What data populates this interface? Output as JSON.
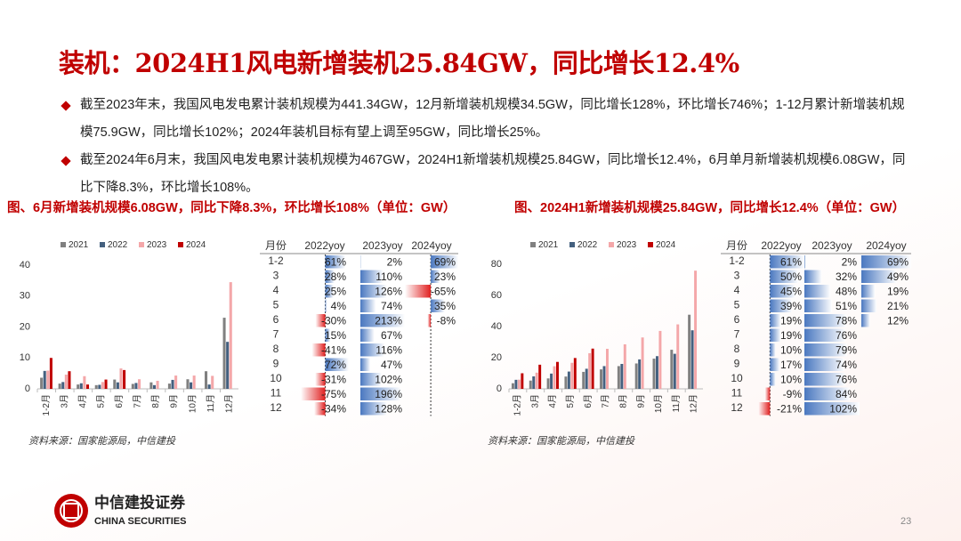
{
  "header": {
    "title": "装机：2024H1风电新增装机25.84GW，同比增长12.4%"
  },
  "bullets": [
    "截至2023年末，我国风电发电累计装机规模为441.34GW，12月新增装机规模34.5GW，同比增长128%，环比增长746%；1-12月累计新增装机规模75.9GW，同比增长102%；2024年装机目标有望上调至95GW，同比增长25%。",
    "截至2024年6月末，我国风电发电累计装机规模为467GW，2024H1新增装机规模25.84GW，同比增长12.4%，6月单月新增装机规模6.08GW，同比下降8.3%，环比增长108%。"
  ],
  "figures": [
    {
      "caption": "图、6月新增装机规模6.08GW，同比下降8.3%，环比增长108%（单位：GW）",
      "source": "资料来源：国家能源局，中信建投"
    },
    {
      "caption": "图、2024H1新增装机规模25.84GW，同比增长12.4%（单位：GW）",
      "source": "资料来源：国家能源局，中信建投"
    }
  ],
  "chart_data": [
    {
      "type": "bar",
      "categories": [
        "1-2月",
        "3月",
        "4月",
        "5月",
        "6月",
        "7月",
        "8月",
        "9月",
        "10月",
        "11月",
        "12月"
      ],
      "series": [
        {
          "name": "2021",
          "color": "#808080",
          "values": [
            3.6,
            1.7,
            1.4,
            1.2,
            3.0,
            1.6,
            2.1,
            1.7,
            3.1,
            5.7,
            23.0
          ]
        },
        {
          "name": "2022",
          "color": "#44607f",
          "values": [
            5.8,
            2.2,
            1.8,
            1.3,
            2.1,
            1.9,
            1.2,
            2.9,
            2.1,
            1.4,
            15.2
          ]
        },
        {
          "name": "2023",
          "color": "#f4a7a9",
          "values": [
            5.9,
            4.6,
            4.1,
            2.2,
            6.6,
            3.1,
            2.6,
            4.3,
            4.3,
            4.2,
            34.5
          ]
        },
        {
          "name": "2024",
          "color": "#c00000",
          "values": [
            10.0,
            5.7,
            1.4,
            3.0,
            6.08,
            null,
            null,
            null,
            null,
            null,
            null
          ]
        }
      ],
      "ylim": [
        0,
        40
      ],
      "yticks": [
        0,
        10,
        20,
        30,
        40
      ],
      "legend": "top"
    },
    {
      "type": "table",
      "row_header": "月份",
      "categories": [
        "1-2",
        "3",
        "4",
        "5",
        "6",
        "7",
        "8",
        "9",
        "10",
        "11",
        "12"
      ],
      "series": [
        {
          "name": "2022yoy",
          "values": [
            61,
            28,
            25,
            4,
            -30,
            15,
            -41,
            72,
            -31,
            -75,
            -34
          ],
          "value_labels": [
            "61%",
            "28%",
            "25%",
            "4%",
            "-30%",
            "15%",
            "-41%",
            "72%",
            "-31%",
            "-75%",
            "-34%"
          ]
        },
        {
          "name": "2023yoy",
          "values": [
            2,
            110,
            126,
            74,
            213,
            67,
            116,
            47,
            102,
            196,
            128
          ],
          "value_labels": [
            "2%",
            "110%",
            "126%",
            "74%",
            "213%",
            "67%",
            "116%",
            "47%",
            "102%",
            "196%",
            "128%"
          ]
        },
        {
          "name": "2024yoy",
          "values": [
            69,
            23,
            -65,
            35,
            -8,
            null,
            null,
            null,
            null,
            null,
            null
          ],
          "value_labels": [
            "69%",
            "23%",
            "-65%",
            "35%",
            "-8%",
            null,
            null,
            null,
            null,
            null,
            null
          ]
        }
      ]
    },
    {
      "type": "bar",
      "categories": [
        "1-2月",
        "3月",
        "4月",
        "5月",
        "6月",
        "7月",
        "8月",
        "9月",
        "10月",
        "11月",
        "12月"
      ],
      "series": [
        {
          "name": "2021",
          "color": "#808080",
          "values": [
            3.6,
            5.3,
            6.7,
            7.9,
            10.9,
            12.5,
            14.6,
            16.3,
            19.4,
            25.1,
            47.6
          ]
        },
        {
          "name": "2022",
          "color": "#44607f",
          "values": [
            5.8,
            8.0,
            9.8,
            11.1,
            12.9,
            14.6,
            16.0,
            18.9,
            21.0,
            22.5,
            37.6
          ]
        },
        {
          "name": "2023",
          "color": "#f4a7a9",
          "values": [
            5.9,
            10.4,
            14.5,
            16.7,
            22.9,
            25.7,
            28.6,
            33.0,
            37.2,
            41.4,
            75.9
          ]
        },
        {
          "name": "2024",
          "color": "#c00000",
          "values": [
            10.0,
            15.5,
            17.3,
            19.8,
            25.84,
            null,
            null,
            null,
            null,
            null,
            null
          ]
        }
      ],
      "ylim": [
        0,
        80
      ],
      "yticks": [
        0,
        20,
        40,
        60,
        80
      ],
      "legend": "top"
    },
    {
      "type": "table",
      "row_header": "月份",
      "categories": [
        "1-2",
        "3",
        "4",
        "5",
        "6",
        "7",
        "8",
        "9",
        "10",
        "11",
        "12"
      ],
      "series": [
        {
          "name": "2022yoy",
          "values": [
            61,
            50,
            45,
            39,
            19,
            19,
            10,
            17,
            10,
            -9,
            -21
          ],
          "value_labels": [
            "61%",
            "50%",
            "45%",
            "39%",
            "19%",
            "19%",
            "10%",
            "17%",
            "10%",
            "-9%",
            "-21%"
          ]
        },
        {
          "name": "2023yoy",
          "values": [
            2,
            32,
            48,
            51,
            78,
            76,
            79,
            74,
            76,
            84,
            102
          ],
          "value_labels": [
            "2%",
            "32%",
            "48%",
            "51%",
            "78%",
            "76%",
            "79%",
            "74%",
            "76%",
            "84%",
            "102%"
          ]
        },
        {
          "name": "2024yoy",
          "values": [
            69,
            49,
            19,
            21,
            12,
            null,
            null,
            null,
            null,
            null,
            null
          ],
          "value_labels": [
            "69%",
            "49%",
            "19%",
            "21%",
            "12%",
            null,
            null,
            null,
            null,
            null,
            null
          ]
        }
      ]
    }
  ],
  "logo": {
    "name": "中信建投证券",
    "name_en": "CHINA SECURITIES"
  },
  "page_number": 23
}
